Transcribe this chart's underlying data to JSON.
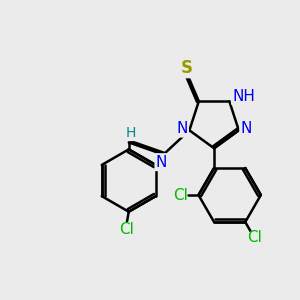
{
  "bg_color": "#ebebeb",
  "bond_color": "#000000",
  "bond_width": 1.8,
  "atom_colors": {
    "S": "#999900",
    "N": "#0000ee",
    "Cl": "#00bb00",
    "H": "#008888",
    "C": "#000000"
  },
  "figsize": [
    3.0,
    3.0
  ],
  "dpi": 100
}
